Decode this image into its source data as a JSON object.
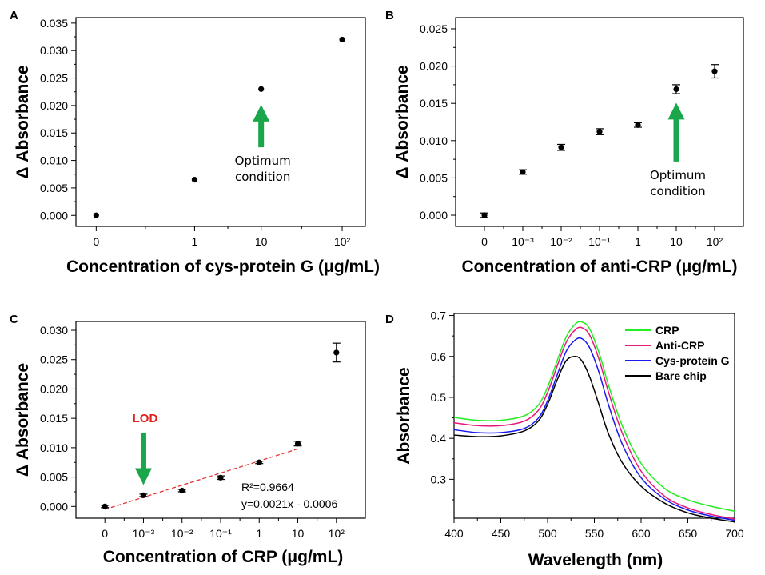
{
  "chart_data": [
    {
      "panel": "A",
      "type": "scatter",
      "xlabel": "Concentration of cys-protein G (μg/mL)",
      "ylabel": "Δ Absorbance",
      "categories": [
        "0",
        "1",
        "10",
        "10²"
      ],
      "values": [
        0.0,
        0.0065,
        0.023,
        0.032
      ],
      "errors": [
        0,
        0,
        0,
        0
      ],
      "ylim": [
        -0.002,
        0.036
      ],
      "yticks": [
        "0.000",
        "0.005",
        "0.010",
        "0.015",
        "0.020",
        "0.025",
        "0.030",
        "0.035"
      ],
      "annotation": [
        "Optimum",
        "condition"
      ],
      "annotation_category": "10"
    },
    {
      "panel": "B",
      "type": "scatter",
      "xlabel": "Concentration of anti-CRP (μg/mL)",
      "ylabel": "Δ Absorbance",
      "categories": [
        "0",
        "10⁻³",
        "10⁻²",
        "10⁻¹",
        "1",
        "10",
        "10²"
      ],
      "values": [
        0.0,
        0.0058,
        0.0091,
        0.0112,
        0.0121,
        0.0169,
        0.0193
      ],
      "errors": [
        0.0003,
        0.0003,
        0.0004,
        0.0004,
        0.0003,
        0.0006,
        0.0009
      ],
      "ylim": [
        -0.0015,
        0.0265
      ],
      "yticks": [
        "0.000",
        "0.005",
        "0.010",
        "0.015",
        "0.020",
        "0.025"
      ],
      "annotation": [
        "Optimum",
        "condition"
      ],
      "annotation_category": "10"
    },
    {
      "panel": "C",
      "type": "scatter",
      "xlabel": "Concentration of CRP (μg/mL)",
      "ylabel": "Δ Absorbance",
      "categories": [
        "0",
        "10⁻³",
        "10⁻²",
        "10⁻¹",
        "1",
        "10",
        "10²"
      ],
      "values": [
        0.0,
        0.0019,
        0.0027,
        0.0049,
        0.0075,
        0.0107,
        0.0262
      ],
      "errors": [
        0.0002,
        0.0002,
        0.0002,
        0.0003,
        0.0002,
        0.0004,
        0.0016
      ],
      "ylim": [
        -0.002,
        0.0315
      ],
      "yticks": [
        "0.000",
        "0.005",
        "0.010",
        "0.015",
        "0.020",
        "0.025",
        "0.030"
      ],
      "fit_line": {
        "start": [
          0,
          -0.0005
        ],
        "end": [
          5,
          0.0098
        ]
      },
      "fit_text": [
        "R²=0.9664",
        "y=0.0021x - 0.0006"
      ],
      "lod_label": "LOD",
      "lod_category": "10⁻³"
    },
    {
      "panel": "D",
      "type": "line",
      "xlabel": "Wavelength (nm)",
      "ylabel": "Absorbance",
      "xlim": [
        400,
        700
      ],
      "ylim": [
        0.205,
        0.705
      ],
      "xticks": [
        "400",
        "450",
        "500",
        "550",
        "600",
        "650",
        "700"
      ],
      "yticks": [
        "0.3",
        "0.4",
        "0.5",
        "0.6",
        "0.7"
      ],
      "x": [
        400,
        425,
        450,
        475,
        490,
        500,
        510,
        520,
        530,
        537,
        545,
        555,
        565,
        580,
        600,
        625,
        650,
        675,
        700
      ],
      "series": [
        {
          "name": "CRP",
          "color": "#22ee22",
          "values": [
            0.451,
            0.444,
            0.444,
            0.455,
            0.481,
            0.525,
            0.588,
            0.648,
            0.68,
            0.684,
            0.667,
            0.609,
            0.531,
            0.43,
            0.339,
            0.278,
            0.25,
            0.234,
            0.222
          ]
        },
        {
          "name": "Anti-CRP",
          "color": "#e6187c",
          "values": [
            0.438,
            0.431,
            0.431,
            0.442,
            0.468,
            0.512,
            0.575,
            0.635,
            0.666,
            0.67,
            0.652,
            0.593,
            0.514,
            0.412,
            0.32,
            0.259,
            0.23,
            0.214,
            0.203
          ]
        },
        {
          "name": "Cys-protein G",
          "color": "#1a1aee",
          "values": [
            0.421,
            0.414,
            0.414,
            0.424,
            0.449,
            0.492,
            0.553,
            0.613,
            0.641,
            0.643,
            0.621,
            0.561,
            0.483,
            0.385,
            0.304,
            0.252,
            0.225,
            0.21,
            0.2
          ]
        },
        {
          "name": "Bare chip",
          "color": "#000000",
          "values": [
            0.408,
            0.404,
            0.406,
            0.418,
            0.442,
            0.483,
            0.541,
            0.59,
            0.6,
            0.588,
            0.55,
            0.482,
            0.412,
            0.34,
            0.283,
            0.242,
            0.218,
            0.205,
            0.196
          ]
        }
      ]
    }
  ]
}
